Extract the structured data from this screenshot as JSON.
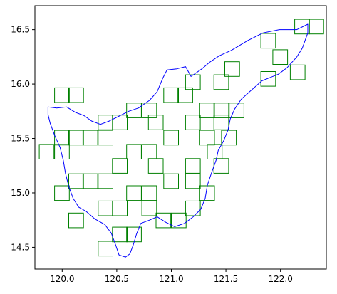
{
  "chart_data": {
    "type": "map",
    "xlim": [
      119.75,
      122.42
    ],
    "ylim": [
      14.3,
      16.72
    ],
    "x_ticks": [
      "120.0",
      "120.5",
      "121.0",
      "121.5",
      "122.0"
    ],
    "x_tick_values": [
      120.0,
      120.5,
      121.0,
      121.5,
      122.0
    ],
    "y_ticks": [
      "14.5",
      "15.0",
      "15.5",
      "16.0",
      "16.5"
    ],
    "y_tick_values": [
      14.5,
      15.0,
      15.5,
      16.0,
      16.5
    ],
    "grid": false,
    "colors": {
      "outline": "#0000ff",
      "cells": "#008000",
      "axes": "#000000"
    },
    "cell_size": 0.135,
    "cells": [
      [
        122.13,
        16.46
      ],
      [
        122.26,
        16.46
      ],
      [
        121.82,
        16.33
      ],
      [
        121.93,
        16.18
      ],
      [
        122.09,
        16.04
      ],
      [
        121.49,
        16.07
      ],
      [
        121.82,
        15.98
      ],
      [
        121.39,
        15.95
      ],
      [
        121.13,
        15.95
      ],
      [
        119.93,
        15.83
      ],
      [
        120.06,
        15.83
      ],
      [
        120.93,
        15.83
      ],
      [
        121.06,
        15.83
      ],
      [
        120.59,
        15.69
      ],
      [
        120.73,
        15.69
      ],
      [
        121.26,
        15.69
      ],
      [
        121.39,
        15.69
      ],
      [
        121.53,
        15.69
      ],
      [
        120.33,
        15.58
      ],
      [
        120.46,
        15.58
      ],
      [
        120.79,
        15.58
      ],
      [
        121.13,
        15.58
      ],
      [
        121.39,
        15.58
      ],
      [
        119.93,
        15.44
      ],
      [
        120.06,
        15.44
      ],
      [
        120.19,
        15.44
      ],
      [
        120.33,
        15.44
      ],
      [
        120.93,
        15.44
      ],
      [
        121.26,
        15.44
      ],
      [
        121.46,
        15.44
      ],
      [
        119.79,
        15.31
      ],
      [
        119.93,
        15.31
      ],
      [
        120.59,
        15.31
      ],
      [
        120.73,
        15.31
      ],
      [
        121.33,
        15.31
      ],
      [
        120.46,
        15.18
      ],
      [
        120.79,
        15.18
      ],
      [
        121.13,
        15.18
      ],
      [
        121.39,
        15.18
      ],
      [
        120.06,
        15.04
      ],
      [
        120.19,
        15.04
      ],
      [
        120.33,
        15.04
      ],
      [
        120.93,
        15.04
      ],
      [
        121.13,
        15.04
      ],
      [
        119.93,
        14.93
      ],
      [
        120.59,
        14.93
      ],
      [
        120.73,
        14.93
      ],
      [
        121.26,
        14.93
      ],
      [
        120.33,
        14.79
      ],
      [
        120.46,
        14.79
      ],
      [
        120.73,
        14.79
      ],
      [
        121.13,
        14.79
      ],
      [
        120.06,
        14.68
      ],
      [
        120.86,
        14.68
      ],
      [
        121.0,
        14.68
      ],
      [
        120.46,
        14.55
      ],
      [
        120.59,
        14.55
      ],
      [
        120.33,
        14.42
      ]
    ],
    "outline": [
      [
        119.87,
        15.79
      ],
      [
        119.95,
        15.78
      ],
      [
        120.04,
        15.79
      ],
      [
        120.12,
        15.74
      ],
      [
        120.2,
        15.71
      ],
      [
        120.27,
        15.66
      ],
      [
        120.35,
        15.63
      ],
      [
        120.43,
        15.66
      ],
      [
        120.51,
        15.7
      ],
      [
        120.61,
        15.75
      ],
      [
        120.7,
        15.78
      ],
      [
        120.8,
        15.85
      ],
      [
        120.87,
        15.93
      ],
      [
        120.92,
        16.05
      ],
      [
        120.96,
        16.13
      ],
      [
        121.05,
        16.14
      ],
      [
        121.13,
        16.16
      ],
      [
        121.18,
        16.07
      ],
      [
        121.28,
        16.14
      ],
      [
        121.35,
        16.2
      ],
      [
        121.44,
        16.26
      ],
      [
        121.55,
        16.31
      ],
      [
        121.7,
        16.4
      ],
      [
        121.84,
        16.47
      ],
      [
        121.99,
        16.5
      ],
      [
        122.15,
        16.5
      ],
      [
        122.25,
        16.55
      ],
      [
        122.25,
        16.47
      ],
      [
        122.2,
        16.33
      ],
      [
        122.15,
        16.25
      ],
      [
        122.06,
        16.15
      ],
      [
        121.98,
        16.09
      ],
      [
        121.83,
        16.03
      ],
      [
        121.74,
        15.95
      ],
      [
        121.64,
        15.86
      ],
      [
        121.58,
        15.77
      ],
      [
        121.54,
        15.68
      ],
      [
        121.52,
        15.58
      ],
      [
        121.48,
        15.48
      ],
      [
        121.43,
        15.39
      ],
      [
        121.41,
        15.3
      ],
      [
        121.37,
        15.19
      ],
      [
        121.33,
        15.07
      ],
      [
        121.31,
        14.95
      ],
      [
        121.27,
        14.85
      ],
      [
        121.2,
        14.78
      ],
      [
        121.12,
        14.72
      ],
      [
        121.03,
        14.69
      ],
      [
        120.95,
        14.73
      ],
      [
        120.87,
        14.78
      ],
      [
        120.8,
        14.75
      ],
      [
        120.72,
        14.72
      ],
      [
        120.68,
        14.62
      ],
      [
        120.65,
        14.52
      ],
      [
        120.62,
        14.44
      ],
      [
        120.58,
        14.41
      ],
      [
        120.52,
        14.43
      ],
      [
        120.49,
        14.52
      ],
      [
        120.45,
        14.63
      ],
      [
        120.39,
        14.71
      ],
      [
        120.3,
        14.76
      ],
      [
        120.22,
        14.83
      ],
      [
        120.15,
        14.87
      ],
      [
        120.1,
        14.95
      ],
      [
        120.06,
        15.06
      ],
      [
        120.03,
        15.18
      ],
      [
        120.01,
        15.3
      ],
      [
        119.98,
        15.42
      ],
      [
        119.93,
        15.53
      ],
      [
        119.89,
        15.64
      ],
      [
        119.87,
        15.72
      ],
      [
        119.87,
        15.79
      ]
    ]
  }
}
